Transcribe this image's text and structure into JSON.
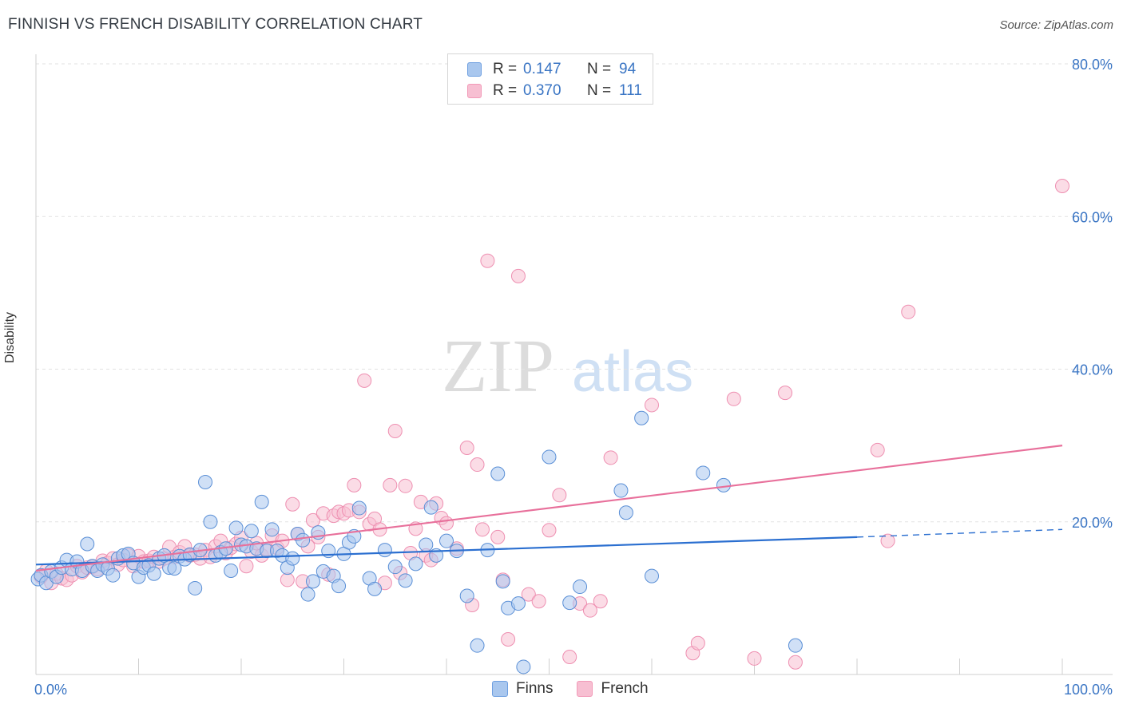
{
  "header": {
    "title": "FINNISH VS FRENCH DISABILITY CORRELATION CHART",
    "source": "Source: ZipAtlas.com"
  },
  "watermark": {
    "zip": "ZIP",
    "atlas": "atlas"
  },
  "legend": {
    "rows": [
      {
        "r_label": "R =",
        "r_value": "0.147",
        "n_label": "N =",
        "n_value": "94",
        "color": "#6e9fe0"
      },
      {
        "r_label": "R =",
        "r_value": "0.370",
        "n_label": "N =",
        "n_value": "111",
        "color": "#f29ab8"
      }
    ]
  },
  "colors": {
    "finns_fill": "#a9c7ee",
    "finns_stroke": "#5a8fd6",
    "finns_line": "#2b6fd0",
    "french_fill": "#f7bfd2",
    "french_stroke": "#ee8fb1",
    "french_line": "#e8709b",
    "tick_label": "#3a75c4",
    "grid": "#e2e2e2"
  },
  "chart_data": {
    "type": "scatter",
    "title": "FINNISH VS FRENCH DISABILITY CORRELATION CHART",
    "xlabel": "",
    "ylabel": "Disability",
    "xlim": [
      0,
      100
    ],
    "ylim": [
      0,
      80
    ],
    "x_ticks": [
      "0.0%",
      "100.0%"
    ],
    "y_ticks": [
      {
        "value": 20,
        "label": "20.0%"
      },
      {
        "value": 40,
        "label": "40.0%"
      },
      {
        "value": 60,
        "label": "60.0%"
      },
      {
        "value": 80,
        "label": "80.0%"
      }
    ],
    "grid": true,
    "legend_position": "top-center",
    "series": [
      {
        "name": "Finns",
        "trend": {
          "x": [
            0,
            80
          ],
          "y": [
            14.4,
            18.0
          ],
          "dashed_to": [
            100,
            19.0
          ]
        },
        "points": [
          [
            0.2,
            12.5
          ],
          [
            0.5,
            13.0
          ],
          [
            1.0,
            12.0
          ],
          [
            1.5,
            13.5
          ],
          [
            2.0,
            12.8
          ],
          [
            2.5,
            14.0
          ],
          [
            3.0,
            15.0
          ],
          [
            3.5,
            13.8
          ],
          [
            4.0,
            14.8
          ],
          [
            4.5,
            13.6
          ],
          [
            5.0,
            17.1
          ],
          [
            5.5,
            14.2
          ],
          [
            6.0,
            13.6
          ],
          [
            6.5,
            14.4
          ],
          [
            7.0,
            13.9
          ],
          [
            7.5,
            13.0
          ],
          [
            8.0,
            15.2
          ],
          [
            8.5,
            15.6
          ],
          [
            9.0,
            15.8
          ],
          [
            9.5,
            14.6
          ],
          [
            10.0,
            12.8
          ],
          [
            10.5,
            14.0
          ],
          [
            11.0,
            14.3
          ],
          [
            11.5,
            13.2
          ],
          [
            12.0,
            15.2
          ],
          [
            12.5,
            15.6
          ],
          [
            13.0,
            14.0
          ],
          [
            13.5,
            13.9
          ],
          [
            14.0,
            15.5
          ],
          [
            14.5,
            15.1
          ],
          [
            15.0,
            15.7
          ],
          [
            15.5,
            11.3
          ],
          [
            16.0,
            16.3
          ],
          [
            16.5,
            25.2
          ],
          [
            17.0,
            20.0
          ],
          [
            17.5,
            15.6
          ],
          [
            18.0,
            16.0
          ],
          [
            18.5,
            16.5
          ],
          [
            19.0,
            13.6
          ],
          [
            19.5,
            19.2
          ],
          [
            20.0,
            17.0
          ],
          [
            20.5,
            16.8
          ],
          [
            21.0,
            18.8
          ],
          [
            21.5,
            16.5
          ],
          [
            22.0,
            22.6
          ],
          [
            22.5,
            16.2
          ],
          [
            23.0,
            19.0
          ],
          [
            23.5,
            16.2
          ],
          [
            24.0,
            15.6
          ],
          [
            24.5,
            14.0
          ],
          [
            25.0,
            15.2
          ],
          [
            25.5,
            18.4
          ],
          [
            26.0,
            17.6
          ],
          [
            26.5,
            10.5
          ],
          [
            27.0,
            12.2
          ],
          [
            27.5,
            18.6
          ],
          [
            28.0,
            13.5
          ],
          [
            28.5,
            16.2
          ],
          [
            29.0,
            12.9
          ],
          [
            29.5,
            11.6
          ],
          [
            30.0,
            15.8
          ],
          [
            30.5,
            17.3
          ],
          [
            31.0,
            18.1
          ],
          [
            31.5,
            21.8
          ],
          [
            32.5,
            12.6
          ],
          [
            33.0,
            11.2
          ],
          [
            34.0,
            16.3
          ],
          [
            35.0,
            14.1
          ],
          [
            36.0,
            12.3
          ],
          [
            37.0,
            14.5
          ],
          [
            38.0,
            17.0
          ],
          [
            38.5,
            21.9
          ],
          [
            39.0,
            15.6
          ],
          [
            40.0,
            17.5
          ],
          [
            41.0,
            16.2
          ],
          [
            42.0,
            10.3
          ],
          [
            43.0,
            3.8
          ],
          [
            44.0,
            16.3
          ],
          [
            45.0,
            26.3
          ],
          [
            45.5,
            12.2
          ],
          [
            46.0,
            8.7
          ],
          [
            47.0,
            9.3
          ],
          [
            47.5,
            1.0
          ],
          [
            50.0,
            28.5
          ],
          [
            52.0,
            9.4
          ],
          [
            53.0,
            11.5
          ],
          [
            57.0,
            24.1
          ],
          [
            57.5,
            21.2
          ],
          [
            59.0,
            33.6
          ],
          [
            60.0,
            12.9
          ],
          [
            65.0,
            26.4
          ],
          [
            67.0,
            24.8
          ],
          [
            74.0,
            3.8
          ]
        ]
      },
      {
        "name": "French",
        "trend": {
          "x": [
            0,
            100
          ],
          "y": [
            13.6,
            30.0
          ]
        },
        "points": [
          [
            0.5,
            12.8
          ],
          [
            1.0,
            13.6
          ],
          [
            1.5,
            12.0
          ],
          [
            2.0,
            13.2
          ],
          [
            2.5,
            12.6
          ],
          [
            3.0,
            12.4
          ],
          [
            3.5,
            13.0
          ],
          [
            4.0,
            14.2
          ],
          [
            4.5,
            13.4
          ],
          [
            5.0,
            14.0
          ],
          [
            5.5,
            14.1
          ],
          [
            6.0,
            13.8
          ],
          [
            6.5,
            14.9
          ],
          [
            7.0,
            14.6
          ],
          [
            7.5,
            15.2
          ],
          [
            8.0,
            14.4
          ],
          [
            8.5,
            15.0
          ],
          [
            9.0,
            15.6
          ],
          [
            9.5,
            14.2
          ],
          [
            10.0,
            15.5
          ],
          [
            10.5,
            14.8
          ],
          [
            11.0,
            14.9
          ],
          [
            11.5,
            15.4
          ],
          [
            12.0,
            14.8
          ],
          [
            12.5,
            15.2
          ],
          [
            13.0,
            16.7
          ],
          [
            13.5,
            15.4
          ],
          [
            14.0,
            16.0
          ],
          [
            14.5,
            16.8
          ],
          [
            15.0,
            15.6
          ],
          [
            15.5,
            15.7
          ],
          [
            16.0,
            15.2
          ],
          [
            16.5,
            16.3
          ],
          [
            17.0,
            15.4
          ],
          [
            17.5,
            16.8
          ],
          [
            18.0,
            17.5
          ],
          [
            18.5,
            15.9
          ],
          [
            19.0,
            16.6
          ],
          [
            19.5,
            17.1
          ],
          [
            20.0,
            17.9
          ],
          [
            20.5,
            14.2
          ],
          [
            21.0,
            16.1
          ],
          [
            21.5,
            17.2
          ],
          [
            22.0,
            15.6
          ],
          [
            22.5,
            16.4
          ],
          [
            23.0,
            18.2
          ],
          [
            23.5,
            16.6
          ],
          [
            24.0,
            17.5
          ],
          [
            24.5,
            12.4
          ],
          [
            25.0,
            22.3
          ],
          [
            25.5,
            18.4
          ],
          [
            26.0,
            12.2
          ],
          [
            26.5,
            16.8
          ],
          [
            27.0,
            20.2
          ],
          [
            27.5,
            18.0
          ],
          [
            28.0,
            21.1
          ],
          [
            28.5,
            13.1
          ],
          [
            29.0,
            20.8
          ],
          [
            29.5,
            21.3
          ],
          [
            30.0,
            21.1
          ],
          [
            30.5,
            21.5
          ],
          [
            31.0,
            24.8
          ],
          [
            31.5,
            21.3
          ],
          [
            32.0,
            38.5
          ],
          [
            32.5,
            19.7
          ],
          [
            33.0,
            20.4
          ],
          [
            33.5,
            19.0
          ],
          [
            34.0,
            12.0
          ],
          [
            34.5,
            24.8
          ],
          [
            35.0,
            31.9
          ],
          [
            35.5,
            13.3
          ],
          [
            36.0,
            24.7
          ],
          [
            36.5,
            15.9
          ],
          [
            37.0,
            19.1
          ],
          [
            37.5,
            22.6
          ],
          [
            38.0,
            15.6
          ],
          [
            38.5,
            15.0
          ],
          [
            39.0,
            22.4
          ],
          [
            39.5,
            20.5
          ],
          [
            40.0,
            19.8
          ],
          [
            41.0,
            16.5
          ],
          [
            42.0,
            29.7
          ],
          [
            42.5,
            9.1
          ],
          [
            43.0,
            27.5
          ],
          [
            43.5,
            19.0
          ],
          [
            44.0,
            54.2
          ],
          [
            45.0,
            18.0
          ],
          [
            45.5,
            12.4
          ],
          [
            46.0,
            4.6
          ],
          [
            47.0,
            52.2
          ],
          [
            48.0,
            10.5
          ],
          [
            49.0,
            9.6
          ],
          [
            50.0,
            18.9
          ],
          [
            51.0,
            23.5
          ],
          [
            52.0,
            2.3
          ],
          [
            53.0,
            9.3
          ],
          [
            54.0,
            8.4
          ],
          [
            55.0,
            9.6
          ],
          [
            56.0,
            28.4
          ],
          [
            60.0,
            35.3
          ],
          [
            64.0,
            2.8
          ],
          [
            64.5,
            4.1
          ],
          [
            68.0,
            36.1
          ],
          [
            70.0,
            2.1
          ],
          [
            73.0,
            36.9
          ],
          [
            74.0,
            1.6
          ],
          [
            82.0,
            29.4
          ],
          [
            83.0,
            17.5
          ],
          [
            85.0,
            47.5
          ],
          [
            100.0,
            64.0
          ]
        ]
      }
    ]
  },
  "bottom_legend": [
    "Finns",
    "French"
  ]
}
